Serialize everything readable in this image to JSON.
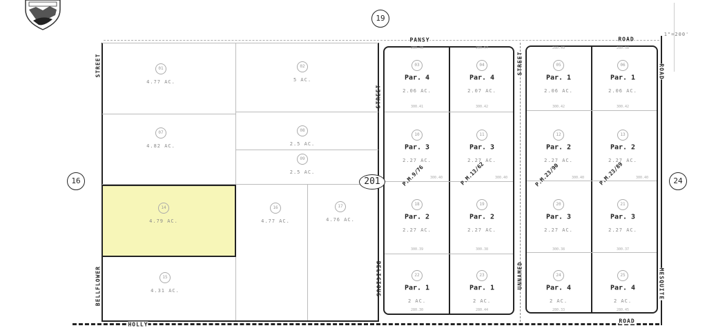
{
  "map": {
    "scale": "1\"=200'",
    "page_refs": {
      "top": "19",
      "left": "16",
      "right": "24"
    },
    "book_ref": "201",
    "highlight_color": "#f7f6b8",
    "streets": {
      "street_left_top": "STREET",
      "street_left_bottom": "BELLFLOWER",
      "street_mid_top": "STREET",
      "street_mid_bottom": "DELICIOUS",
      "street_center_top": "STREET",
      "street_center_bottom": "UNNAMED",
      "road_top_left": "PANSY",
      "road_top_right": "ROAD",
      "road_right_top": "ROAD",
      "road_right_bottom": "MESQUITE",
      "road_bottom_left": "HOLLY",
      "road_bottom_right": "ROAD"
    },
    "left_parcels": [
      {
        "num": "01",
        "acres": "4.77 AC."
      },
      {
        "num": "02",
        "acres": "5 AC."
      },
      {
        "num": "07",
        "acres": "4.82 AC."
      },
      {
        "num": "08",
        "acres": "2.5 AC."
      },
      {
        "num": "09",
        "acres": "2.5 AC."
      },
      {
        "num": "14",
        "acres": "4.79 AC.",
        "highlighted": true
      },
      {
        "num": "16",
        "acres": "4.77 AC."
      },
      {
        "num": "17",
        "acres": "4.76 AC."
      },
      {
        "num": "15",
        "acres": "4.31 AC."
      }
    ],
    "parcel_maps": [
      "P.M.9/76",
      "P.M.13/62",
      "P.M.23/90",
      "P.M.23/89"
    ],
    "right_parcels": [
      {
        "num": "03",
        "par": "Par. 4",
        "acres": "2.06 AC."
      },
      {
        "num": "04",
        "par": "Par. 4",
        "acres": "2.07 AC."
      },
      {
        "num": "05",
        "par": "Par. 1",
        "acres": "2.06 AC."
      },
      {
        "num": "06",
        "par": "Par. 1",
        "acres": "2.06 AC."
      },
      {
        "num": "10",
        "par": "Par. 3",
        "acres": "2.27 AC."
      },
      {
        "num": "11",
        "par": "Par. 3",
        "acres": "2.27 AC."
      },
      {
        "num": "12",
        "par": "Par. 2",
        "acres": "2.27 AC."
      },
      {
        "num": "13",
        "par": "Par. 2",
        "acres": "2.27 AC."
      },
      {
        "num": "18",
        "par": "Par. 2",
        "acres": "2.27 AC."
      },
      {
        "num": "19",
        "par": "Par. 2",
        "acres": "2.27 AC."
      },
      {
        "num": "20",
        "par": "Par. 3",
        "acres": "2.27 AC."
      },
      {
        "num": "21",
        "par": "Par. 3",
        "acres": "2.27 AC."
      },
      {
        "num": "22",
        "par": "Par. 1",
        "acres": "2 AC."
      },
      {
        "num": "23",
        "par": "Par. 1",
        "acres": "2 AC."
      },
      {
        "num": "24",
        "par": "Par. 4",
        "acres": "2 AC."
      },
      {
        "num": "25",
        "par": "Par. 4",
        "acres": "2 AC."
      }
    ],
    "dimension_rows": [
      [
        "280.48",
        "280.57",
        "280.49",
        "280.58"
      ],
      [
        "300.41",
        "300.42",
        "300.42",
        "300.42"
      ],
      [
        "300.40",
        "300.40",
        "300.40",
        "300.40"
      ],
      [
        "300.39",
        "300.38",
        "300.38",
        "300.37"
      ],
      [
        "280.30",
        "280.44",
        "280.33",
        "280.45"
      ]
    ]
  }
}
